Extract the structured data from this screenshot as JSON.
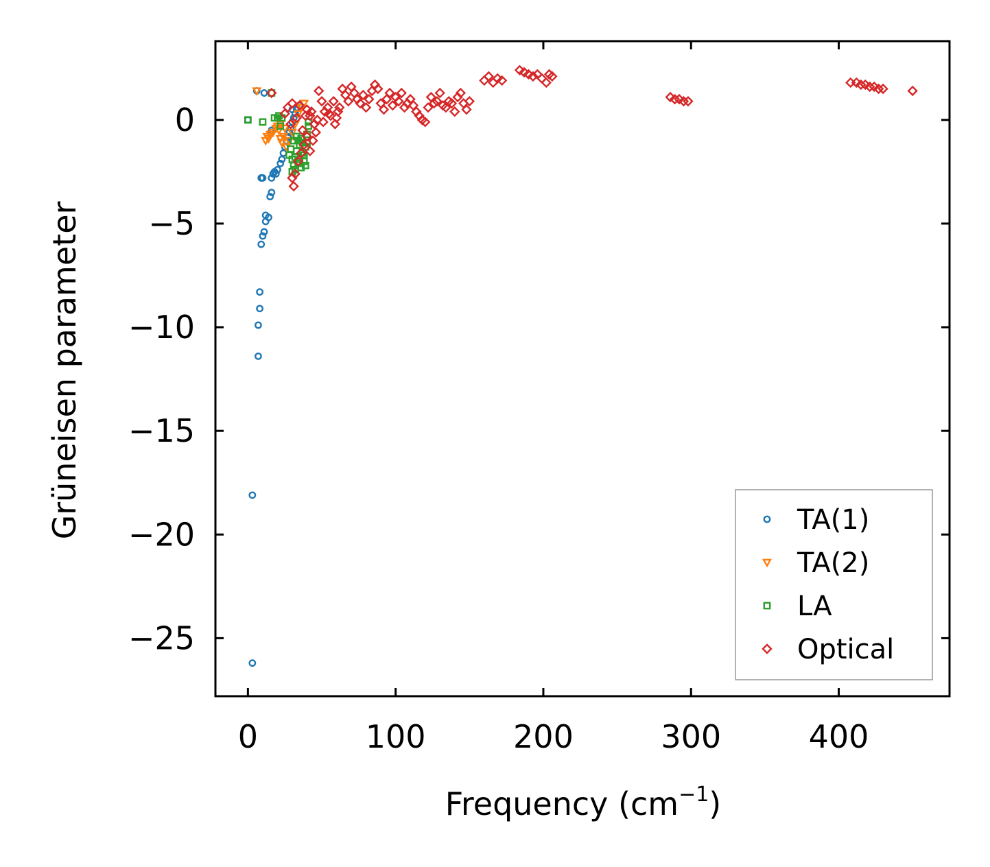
{
  "chart_data": {
    "type": "scatter",
    "title": "",
    "xlabel": "Frequency (cm",
    "xlabel_sup": "−1",
    "xlabel_suffix": ")",
    "ylabel": "Grüneisen parameter",
    "xlim": [
      -22,
      475
    ],
    "ylim": [
      -27.8,
      3.8
    ],
    "xticks": [
      0,
      100,
      200,
      300,
      400
    ],
    "xtick_labels": [
      "0",
      "100",
      "200",
      "300",
      "400"
    ],
    "yticks": [
      0,
      -5,
      -10,
      -15,
      -20,
      -25
    ],
    "ytick_labels": [
      "0",
      "−5",
      "−10",
      "−15",
      "−20",
      "−25"
    ],
    "grid": false,
    "legend_position": "lower-right",
    "series": [
      {
        "name": "TA(1)",
        "marker": "circle",
        "color": "#1f77b4",
        "points": [
          [
            3,
            -26.2
          ],
          [
            3,
            -18.1
          ],
          [
            7,
            -11.4
          ],
          [
            7,
            -9.9
          ],
          [
            8,
            -9.1
          ],
          [
            8,
            -8.3
          ],
          [
            9,
            -6.0
          ],
          [
            10,
            -5.6
          ],
          [
            11,
            -5.4
          ],
          [
            12,
            -4.9
          ],
          [
            12,
            -4.6
          ],
          [
            14,
            -4.7
          ],
          [
            15,
            -3.7
          ],
          [
            16,
            -3.5
          ],
          [
            9,
            -2.8
          ],
          [
            10,
            -2.8
          ],
          [
            16,
            -2.8
          ],
          [
            17,
            -2.6
          ],
          [
            18,
            -2.5
          ],
          [
            19,
            -2.6
          ],
          [
            20,
            -2.4
          ],
          [
            22,
            -2.1
          ],
          [
            23,
            -1.9
          ],
          [
            24,
            -1.6
          ],
          [
            25,
            -1.3
          ],
          [
            26,
            -1.0
          ],
          [
            27,
            -0.8
          ],
          [
            28,
            -0.6
          ],
          [
            29,
            -0.4
          ],
          [
            30,
            -0.1
          ],
          [
            31,
            0.1
          ],
          [
            32,
            0.3
          ],
          [
            33,
            0.5
          ],
          [
            33,
            0.6
          ],
          [
            30,
            0.5
          ],
          [
            35,
            0.7
          ],
          [
            16,
            -0.5
          ],
          [
            16,
            -0.6
          ],
          [
            6,
            1.4
          ],
          [
            11,
            1.3
          ],
          [
            0,
            0.0
          ]
        ]
      },
      {
        "name": "TA(2)",
        "marker": "triangle-down",
        "color": "#ff7f0e",
        "points": [
          [
            6,
            1.4
          ],
          [
            12,
            -1.0
          ],
          [
            13,
            -0.8
          ],
          [
            14,
            -0.9
          ],
          [
            15,
            -0.7
          ],
          [
            20,
            -0.3
          ],
          [
            21,
            -0.5
          ],
          [
            22,
            -0.9
          ],
          [
            23,
            -1.1
          ],
          [
            24,
            -0.8
          ],
          [
            26,
            -1.3
          ],
          [
            28,
            -1.0
          ],
          [
            30,
            -0.6
          ],
          [
            32,
            -0.2
          ],
          [
            34,
            0.3
          ],
          [
            36,
            0.6
          ],
          [
            38,
            0.8
          ],
          [
            25,
            -0.4
          ],
          [
            22,
            -0.2
          ],
          [
            19,
            -0.4
          ],
          [
            17,
            -0.6
          ]
        ]
      },
      {
        "name": "LA",
        "marker": "square",
        "color": "#2ca02c",
        "points": [
          [
            0,
            0.0
          ],
          [
            10,
            -0.1
          ],
          [
            16,
            1.3
          ],
          [
            18,
            0.1
          ],
          [
            20,
            0.1
          ],
          [
            21,
            0.2
          ],
          [
            23,
            0.1
          ],
          [
            22,
            -0.3
          ],
          [
            30,
            -2.5
          ],
          [
            31,
            -2.2
          ],
          [
            32,
            -1.8
          ],
          [
            33,
            -1.5
          ],
          [
            34,
            -2.1
          ],
          [
            35,
            -1.2
          ],
          [
            36,
            -0.9
          ],
          [
            37,
            -1.6
          ],
          [
            38,
            -2.0
          ],
          [
            39,
            -1.3
          ],
          [
            40,
            -0.7
          ],
          [
            41,
            -0.3
          ],
          [
            41,
            -0.1
          ],
          [
            30,
            -1.9
          ],
          [
            32,
            -2.4
          ],
          [
            34,
            -1.0
          ],
          [
            36,
            -2.3
          ],
          [
            38,
            -1.7
          ],
          [
            40,
            -1.1
          ],
          [
            29,
            -1.4
          ],
          [
            33,
            -0.8
          ],
          [
            35,
            -1.9
          ],
          [
            37,
            -1.1
          ],
          [
            39,
            -2.2
          ],
          [
            31,
            -1.0
          ],
          [
            28,
            -1.7
          ]
        ]
      },
      {
        "name": "Optical",
        "marker": "diamond",
        "color": "#d62728",
        "points": [
          [
            16,
            1.3
          ],
          [
            30,
            -2.8
          ],
          [
            31,
            -3.2
          ],
          [
            32,
            -2.6
          ],
          [
            34,
            -2.0
          ],
          [
            36,
            -1.6
          ],
          [
            38,
            -1.2
          ],
          [
            40,
            -0.8
          ],
          [
            42,
            -1.5
          ],
          [
            44,
            -1.0
          ],
          [
            46,
            -0.6
          ],
          [
            30,
            0.8
          ],
          [
            35,
            0.7
          ],
          [
            40,
            0.5
          ],
          [
            42,
            0.2
          ],
          [
            45,
            -0.2
          ],
          [
            48,
            1.4
          ],
          [
            50,
            0.9
          ],
          [
            52,
            0.4
          ],
          [
            54,
            0.6
          ],
          [
            56,
            0.2
          ],
          [
            58,
            0.9
          ],
          [
            60,
            0.1
          ],
          [
            62,
            0.6
          ],
          [
            64,
            1.5
          ],
          [
            66,
            1.2
          ],
          [
            68,
            0.9
          ],
          [
            70,
            1.6
          ],
          [
            72,
            1.3
          ],
          [
            74,
            1.0
          ],
          [
            76,
            0.8
          ],
          [
            78,
            1.2
          ],
          [
            80,
            0.6
          ],
          [
            82,
            1.0
          ],
          [
            84,
            1.4
          ],
          [
            86,
            1.7
          ],
          [
            88,
            1.5
          ],
          [
            90,
            0.8
          ],
          [
            92,
            0.5
          ],
          [
            94,
            1.0
          ],
          [
            96,
            1.3
          ],
          [
            98,
            0.7
          ],
          [
            100,
            1.1
          ],
          [
            102,
            0.9
          ],
          [
            104,
            1.3
          ],
          [
            106,
            0.6
          ],
          [
            108,
            0.8
          ],
          [
            110,
            1.0
          ],
          [
            112,
            0.7
          ],
          [
            114,
            0.4
          ],
          [
            116,
            0.2
          ],
          [
            118,
            0.0
          ],
          [
            120,
            -0.1
          ],
          [
            122,
            0.6
          ],
          [
            124,
            1.1
          ],
          [
            126,
            0.8
          ],
          [
            128,
            0.9
          ],
          [
            130,
            1.3
          ],
          [
            132,
            0.7
          ],
          [
            134,
            0.6
          ],
          [
            136,
            0.9
          ],
          [
            138,
            0.8
          ],
          [
            140,
            0.4
          ],
          [
            142,
            1.1
          ],
          [
            144,
            1.3
          ],
          [
            146,
            0.8
          ],
          [
            148,
            0.5
          ],
          [
            150,
            0.9
          ],
          [
            160,
            1.9
          ],
          [
            163,
            2.1
          ],
          [
            166,
            1.8
          ],
          [
            169,
            2.0
          ],
          [
            172,
            1.9
          ],
          [
            184,
            2.4
          ],
          [
            187,
            2.3
          ],
          [
            190,
            2.2
          ],
          [
            193,
            2.1
          ],
          [
            196,
            2.2
          ],
          [
            199,
            2.0
          ],
          [
            202,
            1.8
          ],
          [
            204,
            2.2
          ],
          [
            206,
            2.1
          ],
          [
            286,
            1.1
          ],
          [
            289,
            1.0
          ],
          [
            292,
            1.0
          ],
          [
            295,
            0.9
          ],
          [
            298,
            0.9
          ],
          [
            408,
            1.8
          ],
          [
            412,
            1.8
          ],
          [
            415,
            1.7
          ],
          [
            418,
            1.7
          ],
          [
            421,
            1.6
          ],
          [
            424,
            1.6
          ],
          [
            427,
            1.5
          ],
          [
            430,
            1.5
          ],
          [
            450,
            1.4
          ],
          [
            25,
            0.3
          ],
          [
            27,
            0.6
          ],
          [
            29,
            -0.2
          ],
          [
            33,
            0.1
          ],
          [
            37,
            -0.5
          ],
          [
            39,
            0.2
          ],
          [
            43,
            0.4
          ],
          [
            47,
            0.0
          ],
          [
            51,
            -0.1
          ],
          [
            55,
            0.3
          ],
          [
            59,
            -0.2
          ],
          [
            61,
            0.4
          ]
        ]
      }
    ]
  }
}
